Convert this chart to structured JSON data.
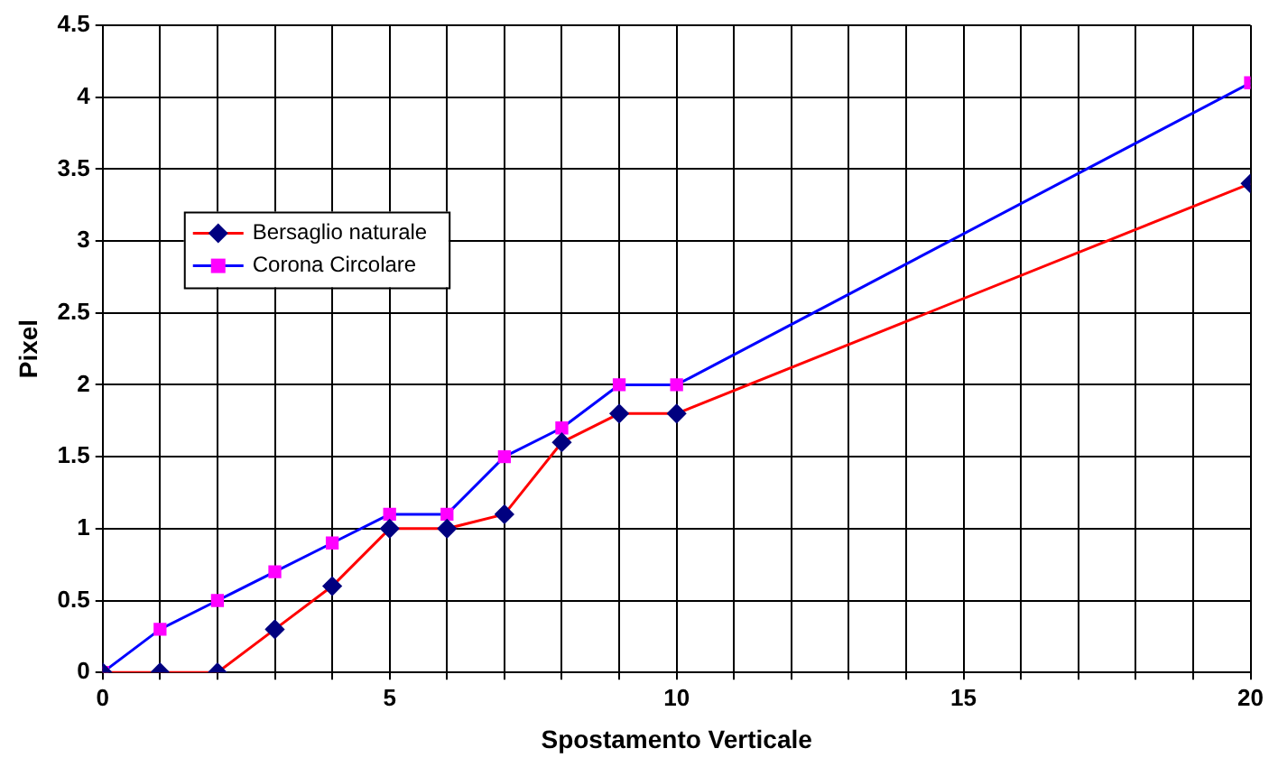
{
  "chart_data": {
    "type": "line",
    "xlabel": "Spostamento Verticale",
    "ylabel": "Pixel",
    "x": [
      0,
      1,
      2,
      3,
      4,
      5,
      6,
      7,
      8,
      9,
      10,
      20
    ],
    "series": [
      {
        "name": "Bersaglio naturale",
        "color": "#ff0000",
        "colors": [
          "#000080",
          "#000080",
          "#000080",
          "#000080",
          "#000080",
          "#000080",
          "#000080",
          "#000080",
          "#000080",
          "#000080",
          "#000080",
          "#000080"
        ],
        "marker": "diamond",
        "values": [
          0,
          0,
          0,
          0.3,
          0.6,
          1,
          1,
          1.1,
          1.6,
          1.8,
          1.8,
          3.4
        ]
      },
      {
        "name": "Corona Circolare",
        "color": "#0000ff",
        "colors": [
          "#ff00ff",
          "#ff00ff",
          "#ff00ff",
          "#ff00ff",
          "#ff00ff",
          "#ff00ff",
          "#ff00ff",
          "#ff00ff",
          "#ff00ff",
          "#ff00ff",
          "#ff00ff",
          "#ff00ff"
        ],
        "marker": "square",
        "values": [
          0,
          0.3,
          0.5,
          0.7,
          0.9,
          1.1,
          1.1,
          1.5,
          1.7,
          2,
          2,
          4.1
        ]
      }
    ],
    "xlim": [
      0,
      20
    ],
    "xticks": [
      0,
      {
        "value": 1,
        "label": null
      },
      {
        "value": 2,
        "label": null
      },
      {
        "value": 3,
        "label": null
      },
      {
        "value": 4,
        "label": null
      },
      5,
      {
        "value": 6,
        "label": null
      },
      {
        "value": 7,
        "label": null
      },
      {
        "value": 8,
        "label": null
      },
      {
        "value": 9,
        "label": null
      },
      10,
      {
        "value": 11,
        "label": null
      },
      {
        "value": 12,
        "label": null
      },
      {
        "value": 13,
        "label": null
      },
      {
        "value": 14,
        "label": null
      },
      15,
      {
        "value": 16,
        "label": null
      },
      {
        "value": 17,
        "label": null
      },
      {
        "value": 18,
        "label": null
      },
      {
        "value": 19,
        "label": null
      },
      20
    ],
    "ylim": [
      0,
      4.5
    ],
    "yticks": [
      0,
      0.5,
      1,
      1.5,
      2,
      2.5,
      3,
      3.5,
      4,
      4.5
    ],
    "grid": true,
    "legend": "left",
    "line_style": "solid"
  }
}
